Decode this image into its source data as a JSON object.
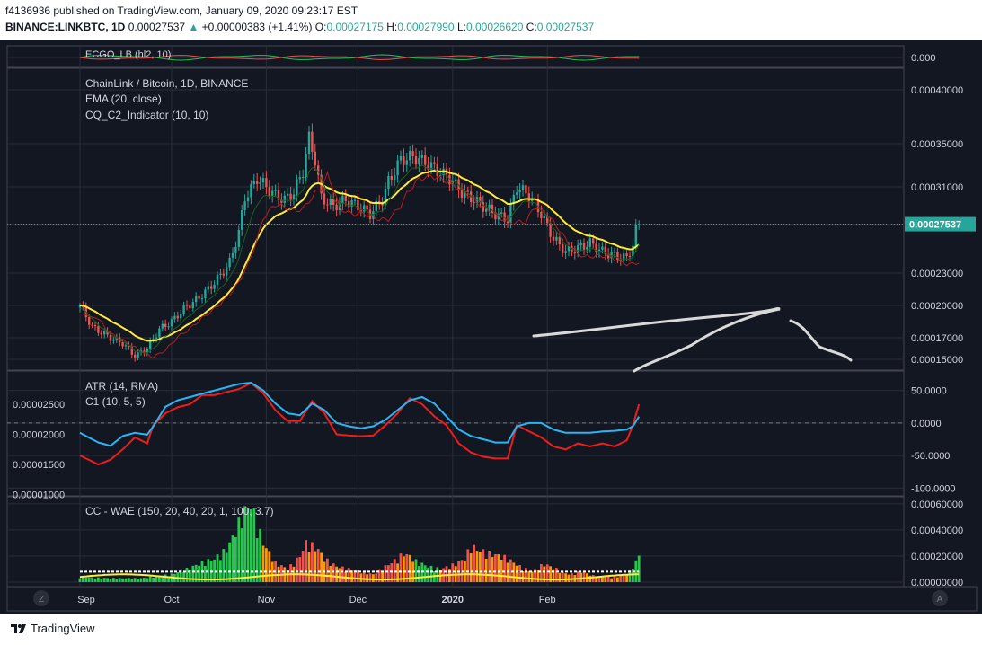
{
  "header": {
    "publisher": "f4136936 published on TradingView.com, January 09, 2020 09:23:17 EST",
    "symbol": "BINANCE:LINKBTC, 1D",
    "last": "0.00027537",
    "change": "+0.00000383 (+1.41%)",
    "o_label": "O:",
    "o_value": "0.00027175",
    "h_label": "H:",
    "h_value": "0.00027990",
    "l_label": "L:",
    "l_value": "0.00026620",
    "c_label": "C:",
    "c_value": "0.00027537"
  },
  "footer": {
    "brand": "TradingView"
  },
  "colors": {
    "background": "#131722",
    "grid": "#2a2e39",
    "border": "#434651",
    "text": "#d1d4dc",
    "candle_up": "#26a69a",
    "candle_down": "#ef5350",
    "ema": "#ffeb3b",
    "c2_fast": "#1b5e20",
    "c2_slow": "#b71c1c",
    "atr": "#ef1c1c",
    "c1": "#29b6f6",
    "wae_green": "#26c64f",
    "wae_red": "#ef5350",
    "wae_orange": "#ff9800",
    "wae_dead": "#ffffff",
    "wae_exp": "#ffeb3b",
    "last_price_bg": "#26a69a"
  },
  "chart_data": [
    {
      "panel": "ecgo",
      "type": "line",
      "title": "ECGO_LB (hl2, 10)",
      "y_ticks": [
        "0.000"
      ],
      "series": [
        {
          "color": "green/red"
        }
      ]
    },
    {
      "panel": "main",
      "type": "candlestick",
      "title": "ChainLink / Bitcoin, 1D, BINANCE",
      "overlays": [
        "EMA (20, close)",
        "CQ_C2_Indicator (10, 10)"
      ],
      "ylim": [
        0.00014,
        0.00042
      ],
      "y_ticks": [
        "0.00040000",
        "0.00035000",
        "0.00031000",
        "0.00027537",
        "0.00023000",
        "0.00020000",
        "0.00017000",
        "0.00015000"
      ],
      "last_price": "0.00027537",
      "anchors": [
        [
          0,
          0.0002
        ],
        [
          4,
          0.00018
        ],
        [
          10,
          0.00017
        ],
        [
          14,
          0.000165
        ],
        [
          18,
          0.000153
        ],
        [
          22,
          0.00016
        ],
        [
          26,
          0.000178
        ],
        [
          30,
          0.000185
        ],
        [
          34,
          0.000197
        ],
        [
          38,
          0.000205
        ],
        [
          42,
          0.000215
        ],
        [
          46,
          0.000228
        ],
        [
          49,
          0.00024
        ],
        [
          52,
          0.000268
        ],
        [
          54,
          0.0003
        ],
        [
          56,
          0.000308
        ],
        [
          58,
          0.000318
        ],
        [
          61,
          0.00031
        ],
        [
          64,
          0.000302
        ],
        [
          67,
          0.000298
        ],
        [
          70,
          0.000305
        ],
        [
          73,
          0.000325
        ],
        [
          75,
          0.000355
        ],
        [
          77,
          0.000335
        ],
        [
          79,
          0.0003
        ],
        [
          83,
          0.000292
        ],
        [
          87,
          0.000298
        ],
        [
          91,
          0.000292
        ],
        [
          95,
          0.000285
        ],
        [
          99,
          0.000298
        ],
        [
          101,
          0.000315
        ],
        [
          105,
          0.000335
        ],
        [
          109,
          0.000338
        ],
        [
          113,
          0.000333
        ],
        [
          117,
          0.000325
        ],
        [
          121,
          0.000318
        ],
        [
          125,
          0.000305
        ],
        [
          129,
          0.000298
        ],
        [
          133,
          0.00029
        ],
        [
          137,
          0.000283
        ],
        [
          140,
          0.00028
        ],
        [
          143,
          0.00031
        ],
        [
          147,
          0.000302
        ],
        [
          151,
          0.000285
        ],
        [
          155,
          0.000262
        ],
        [
          159,
          0.00025
        ],
        [
          163,
          0.000253
        ],
        [
          167,
          0.000258
        ],
        [
          171,
          0.00025
        ],
        [
          175,
          0.000246
        ],
        [
          179,
          0.000244
        ],
        [
          181,
          0.000256
        ],
        [
          182,
          0.00027
        ],
        [
          183,
          0.000275
        ]
      ]
    },
    {
      "panel": "atr_c1",
      "type": "line",
      "title": "ATR (14, RMA)",
      "subtitle": "C1 (10, 5, 5)",
      "left_ticks": [
        "0.00002500",
        "0.00002000",
        "0.00001500",
        "0.00001000"
      ],
      "right_ticks": [
        "50.0000",
        "0.0000",
        "-50.0000",
        "-100.0000"
      ],
      "atr_anchors": [
        [
          0,
          1.65e-05
        ],
        [
          6,
          1.5e-05
        ],
        [
          10,
          1.58e-05
        ],
        [
          14,
          1.75e-05
        ],
        [
          18,
          1.95e-05
        ],
        [
          22,
          1.85e-05
        ],
        [
          24,
          2.15e-05
        ],
        [
          28,
          2.35e-05
        ],
        [
          32,
          2.45e-05
        ],
        [
          36,
          2.5e-05
        ],
        [
          40,
          2.65e-05
        ],
        [
          44,
          2.65e-05
        ],
        [
          48,
          2.7e-05
        ],
        [
          52,
          2.75e-05
        ],
        [
          56,
          2.85e-05
        ],
        [
          60,
          2.68e-05
        ],
        [
          64,
          2.4e-05
        ],
        [
          68,
          2.22e-05
        ],
        [
          72,
          2.22e-05
        ],
        [
          76,
          2.55e-05
        ],
        [
          80,
          2.35e-05
        ],
        [
          84,
          2e-05
        ],
        [
          88,
          1.98e-05
        ],
        [
          92,
          1.97e-05
        ],
        [
          96,
          1.98e-05
        ],
        [
          100,
          2.15e-05
        ],
        [
          104,
          2.35e-05
        ],
        [
          108,
          2.6e-05
        ],
        [
          112,
          2.5e-05
        ],
        [
          116,
          2.3e-05
        ],
        [
          120,
          2.15e-05
        ],
        [
          124,
          1.85e-05
        ],
        [
          128,
          1.7e-05
        ],
        [
          132,
          1.63e-05
        ],
        [
          136,
          1.6e-05
        ],
        [
          140,
          1.6e-05
        ],
        [
          143,
          2.15e-05
        ],
        [
          147,
          2.05e-05
        ],
        [
          151,
          1.95e-05
        ],
        [
          155,
          1.8e-05
        ],
        [
          159,
          1.75e-05
        ],
        [
          163,
          1.85e-05
        ],
        [
          167,
          1.8e-05
        ],
        [
          171,
          1.85e-05
        ],
        [
          175,
          1.8e-05
        ],
        [
          179,
          1.9e-05
        ],
        [
          181,
          2.15e-05
        ],
        [
          183,
          2.5e-05
        ]
      ],
      "c1_anchors": [
        [
          0,
          -15
        ],
        [
          6,
          -30
        ],
        [
          10,
          -35
        ],
        [
          14,
          -20
        ],
        [
          18,
          -15
        ],
        [
          22,
          -18
        ],
        [
          24,
          -5
        ],
        [
          28,
          25
        ],
        [
          32,
          35
        ],
        [
          36,
          40
        ],
        [
          40,
          45
        ],
        [
          44,
          50
        ],
        [
          48,
          55
        ],
        [
          52,
          60
        ],
        [
          56,
          62
        ],
        [
          60,
          50
        ],
        [
          64,
          30
        ],
        [
          68,
          15
        ],
        [
          72,
          12
        ],
        [
          76,
          30
        ],
        [
          80,
          20
        ],
        [
          84,
          0
        ],
        [
          88,
          -5
        ],
        [
          92,
          -8
        ],
        [
          96,
          -5
        ],
        [
          100,
          5
        ],
        [
          104,
          20
        ],
        [
          108,
          35
        ],
        [
          112,
          40
        ],
        [
          116,
          30
        ],
        [
          120,
          10
        ],
        [
          124,
          -10
        ],
        [
          128,
          -20
        ],
        [
          132,
          -25
        ],
        [
          136,
          -30
        ],
        [
          140,
          -30
        ],
        [
          143,
          -5
        ],
        [
          147,
          0
        ],
        [
          151,
          0
        ],
        [
          155,
          -10
        ],
        [
          159,
          -15
        ],
        [
          163,
          -15
        ],
        [
          167,
          -15
        ],
        [
          171,
          -13
        ],
        [
          175,
          -12
        ],
        [
          179,
          -10
        ],
        [
          181,
          -5
        ],
        [
          183,
          10
        ]
      ]
    },
    {
      "panel": "wae",
      "type": "bar",
      "title": "CC - WAE (150, 20, 40, 20, 1, 100, 3.7)",
      "y_ticks": [
        "0.00000000",
        "0.00020000",
        "0.00040000",
        "0.00060000"
      ],
      "anchors": [
        [
          0,
          4e-05
        ],
        [
          10,
          3e-05
        ],
        [
          20,
          3e-05
        ],
        [
          30,
          6e-05
        ],
        [
          35,
          0.0001
        ],
        [
          40,
          0.00015
        ],
        [
          44,
          0.00018
        ],
        [
          48,
          0.00025
        ],
        [
          50,
          0.00035
        ],
        [
          52,
          0.00045
        ],
        [
          54,
          0.00055
        ],
        [
          56,
          0.0006
        ],
        [
          58,
          0.00045
        ],
        [
          60,
          0.0003
        ],
        [
          64,
          0.00015
        ],
        [
          68,
          0.0001
        ],
        [
          72,
          0.0002
        ],
        [
          74,
          0.0003
        ],
        [
          76,
          0.00028
        ],
        [
          78,
          0.00025
        ],
        [
          80,
          0.00018
        ],
        [
          84,
          0.00012
        ],
        [
          88,
          0.0001
        ],
        [
          92,
          8e-05
        ],
        [
          96,
          6e-05
        ],
        [
          100,
          0.00012
        ],
        [
          104,
          0.00018
        ],
        [
          106,
          0.00022
        ],
        [
          108,
          0.0002
        ],
        [
          110,
          0.00016
        ],
        [
          114,
          0.00012
        ],
        [
          118,
          0.0001
        ],
        [
          122,
          0.00013
        ],
        [
          126,
          0.00018
        ],
        [
          128,
          0.00028
        ],
        [
          130,
          0.00025
        ],
        [
          134,
          0.00022
        ],
        [
          138,
          0.0002
        ],
        [
          140,
          0.00018
        ],
        [
          144,
          0.00012
        ],
        [
          148,
          8e-05
        ],
        [
          152,
          0.00014
        ],
        [
          156,
          0.0001
        ],
        [
          160,
          6e-05
        ],
        [
          164,
          8e-05
        ],
        [
          168,
          5e-05
        ],
        [
          172,
          4e-05
        ],
        [
          176,
          4e-05
        ],
        [
          180,
          8e-05
        ],
        [
          183,
          0.0002
        ]
      ]
    }
  ],
  "time_axis": {
    "labels": [
      {
        "text": "Sep",
        "day": 0
      },
      {
        "text": "Oct",
        "day": 30
      },
      {
        "text": "Nov",
        "day": 61
      },
      {
        "text": "Dec",
        "day": 91
      },
      {
        "text": "2020",
        "day": 122
      },
      {
        "text": "Feb",
        "day": 153
      }
    ]
  },
  "scale_buttons": {
    "left": "Z",
    "right": "A"
  }
}
